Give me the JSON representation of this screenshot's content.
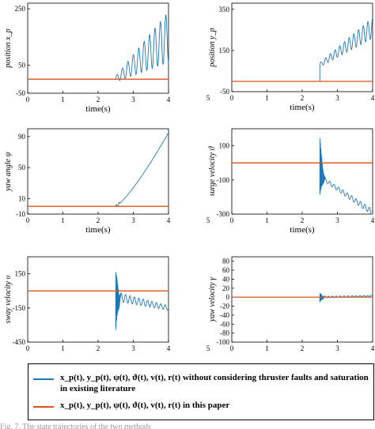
{
  "chart_data": [
    {
      "type": "line",
      "xlabel": "time(s)",
      "ylabel": "position x_p",
      "xlim": [
        0,
        4
      ],
      "ylim": [
        -50,
        270
      ],
      "xticks": [
        "0",
        "1",
        "2",
        "3",
        "4"
      ],
      "yticks": [
        "250",
        "50",
        "-50"
      ],
      "series": [
        {
          "color": "#1f77b4",
          "t_start": 2.5,
          "t_end": 4,
          "base": [
            0,
            150
          ],
          "amp": [
            10,
            90
          ],
          "freq": 6.5
        },
        {
          "color": "#d95319",
          "constant": 0
        }
      ]
    },
    {
      "type": "line",
      "xlabel": "time(s)",
      "ylabel": "position y_p",
      "xlim": [
        0,
        4
      ],
      "ylim": [
        -50,
        380
      ],
      "xticks": [
        "5",
        "0",
        "1",
        "2",
        "3",
        "4"
      ],
      "yticks": [
        "350",
        "150",
        "-50"
      ],
      "series": [
        {
          "color": "#1f77b4",
          "t_start": 2.5,
          "t_end": 4,
          "base": [
            80,
            260
          ],
          "amp": [
            10,
            50
          ],
          "freq": 7.5
        },
        {
          "color": "#d95319",
          "constant": 0
        }
      ]
    },
    {
      "type": "line",
      "xlabel": "time(s)",
      "ylabel": "yaw angle ψ",
      "xlim": [
        0,
        4
      ],
      "ylim": [
        -10,
        100
      ],
      "xticks": [
        "0",
        "1",
        "2",
        "3",
        "4"
      ],
      "yticks": [
        "90",
        "50",
        "10",
        "-10"
      ],
      "series": [
        {
          "color": "#1f77b4",
          "t_start": 2.5,
          "t_end": 4,
          "start_value": 0,
          "end_value": 95
        },
        {
          "color": "#d95319",
          "constant": 0
        }
      ]
    },
    {
      "type": "line",
      "xlabel": "time(s)",
      "ylabel": "surge velocity ϑ",
      "xlim": [
        0,
        4
      ],
      "ylim": [
        -300,
        200
      ],
      "xticks": [
        "5",
        "0",
        "1",
        "2",
        "3",
        "4"
      ],
      "yticks": [
        "100",
        "-100",
        "-300"
      ],
      "series": [
        {
          "color": "#1f77b4",
          "t_start": 2.5,
          "t_end": 4,
          "spike_max": 180,
          "spike_min": -200,
          "base": [
            -80,
            -290
          ],
          "amp": [
            10,
            18
          ],
          "freq": 8
        },
        {
          "color": "#d95319",
          "constant": 0
        }
      ]
    },
    {
      "type": "line",
      "xlabel": "",
      "ylabel": "sway velocity υ",
      "xlim": [
        0,
        4
      ],
      "ylim": [
        -450,
        300
      ],
      "xticks": [
        "0",
        "1",
        "2",
        "3",
        "4"
      ],
      "yticks": [
        "150",
        "-150",
        "-450"
      ],
      "series": [
        {
          "color": "#1f77b4",
          "t_start": 2.5,
          "t_end": 4,
          "spike_max": 200,
          "spike_min": -380,
          "base": [
            -50,
            -150
          ],
          "amp": [
            40,
            20
          ],
          "freq": 8
        },
        {
          "color": "#d95319",
          "constant": 0
        }
      ]
    },
    {
      "type": "line",
      "xlabel": "",
      "ylabel": "yaw velocity γ",
      "xlim": [
        0,
        4
      ],
      "ylim": [
        -100,
        90
      ],
      "xticks": [
        "5",
        "0",
        "1",
        "2",
        "3",
        "4"
      ],
      "yticks": [
        "80",
        "60",
        "40",
        "20",
        "0",
        "-20",
        "-40",
        "-60",
        "-80",
        "-100"
      ],
      "series": [
        {
          "color": "#1f77b4",
          "t_start": 2.5,
          "t_end": 4,
          "spike_max": 10,
          "spike_min": -12,
          "base": [
            0,
            3
          ],
          "amp": [
            2,
            1
          ],
          "freq": 9
        },
        {
          "color": "#d95319",
          "constant": 0
        }
      ]
    }
  ],
  "legend": [
    {
      "color": "#1f77b4",
      "label": "x_p(t), y_p(t), ψ(t), ϑ(t), v(t), r(t) without considering thruster faults and saturation in existing literature"
    },
    {
      "color": "#d95319",
      "label": "x_p(t), y_p(t), ψ(t), ϑ(t), v(t), r(t) in this paper"
    }
  ],
  "caption": "Fig. 7. The state trajectories of the two methods"
}
